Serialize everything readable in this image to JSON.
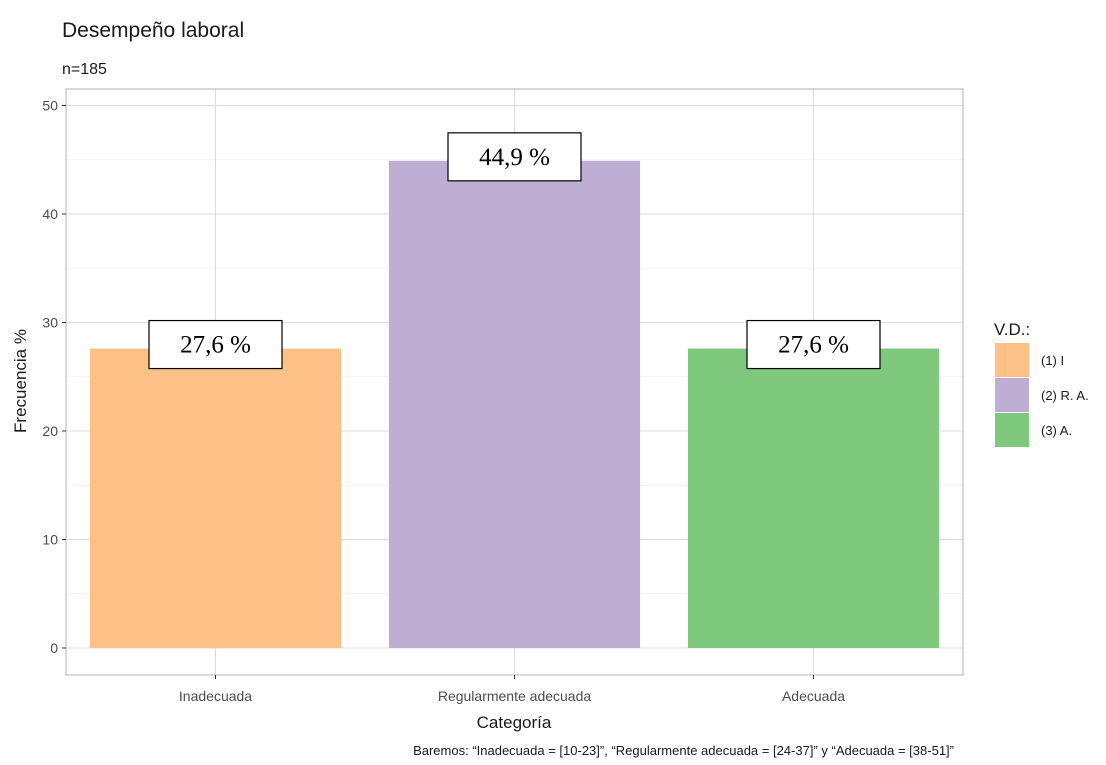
{
  "chart_data": {
    "type": "bar",
    "title": "Desempeño laboral",
    "subtitle": "n=185",
    "xlabel": "Categoría",
    "ylabel": "Frecuencia %",
    "categories": [
      "Inadecuada",
      "Regularmente adecuada",
      "Adecuada"
    ],
    "values": [
      27.6,
      44.9,
      27.6
    ],
    "data_labels": [
      "27,6 %",
      "44,9 %",
      "27,6 %"
    ],
    "colors": [
      "#FDC086",
      "#BEAED4",
      "#7FC97F"
    ],
    "ylim": [
      0,
      50
    ],
    "yticks": [
      0,
      10,
      20,
      30,
      40,
      50
    ],
    "grid": true,
    "legend": {
      "title": "V.D.:",
      "placement": "right",
      "entries": [
        "(1) I",
        "(2) R. A.",
        "(3) A."
      ]
    },
    "caption": "Baremos: “Inadecuada = [10-23]”, “Regularmente adecuada = [24-37]” y “Adecuada = [38-51]”"
  }
}
